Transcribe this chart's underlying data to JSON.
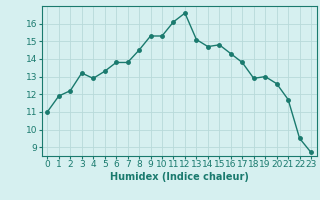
{
  "x": [
    0,
    1,
    2,
    3,
    4,
    5,
    6,
    7,
    8,
    9,
    10,
    11,
    12,
    13,
    14,
    15,
    16,
    17,
    18,
    19,
    20,
    21,
    22,
    23
  ],
  "y": [
    11.0,
    11.9,
    12.2,
    13.2,
    12.9,
    13.3,
    13.8,
    13.8,
    14.5,
    15.3,
    15.3,
    16.1,
    16.6,
    15.1,
    14.7,
    14.8,
    14.3,
    13.8,
    12.9,
    13.0,
    12.6,
    11.7,
    9.5,
    8.7
  ],
  "line_color": "#1a7a6e",
  "marker": "o",
  "markersize": 2.5,
  "linewidth": 1.0,
  "bg_color": "#d6f0f0",
  "grid_color": "#b8dada",
  "xlabel": "Humidex (Indice chaleur)",
  "xlim": [
    -0.5,
    23.5
  ],
  "ylim": [
    8.5,
    17.0
  ],
  "yticks": [
    9,
    10,
    11,
    12,
    13,
    14,
    15,
    16
  ],
  "xticks": [
    0,
    1,
    2,
    3,
    4,
    5,
    6,
    7,
    8,
    9,
    10,
    11,
    12,
    13,
    14,
    15,
    16,
    17,
    18,
    19,
    20,
    21,
    22,
    23
  ],
  "label_fontsize": 7,
  "tick_fontsize": 6.5
}
